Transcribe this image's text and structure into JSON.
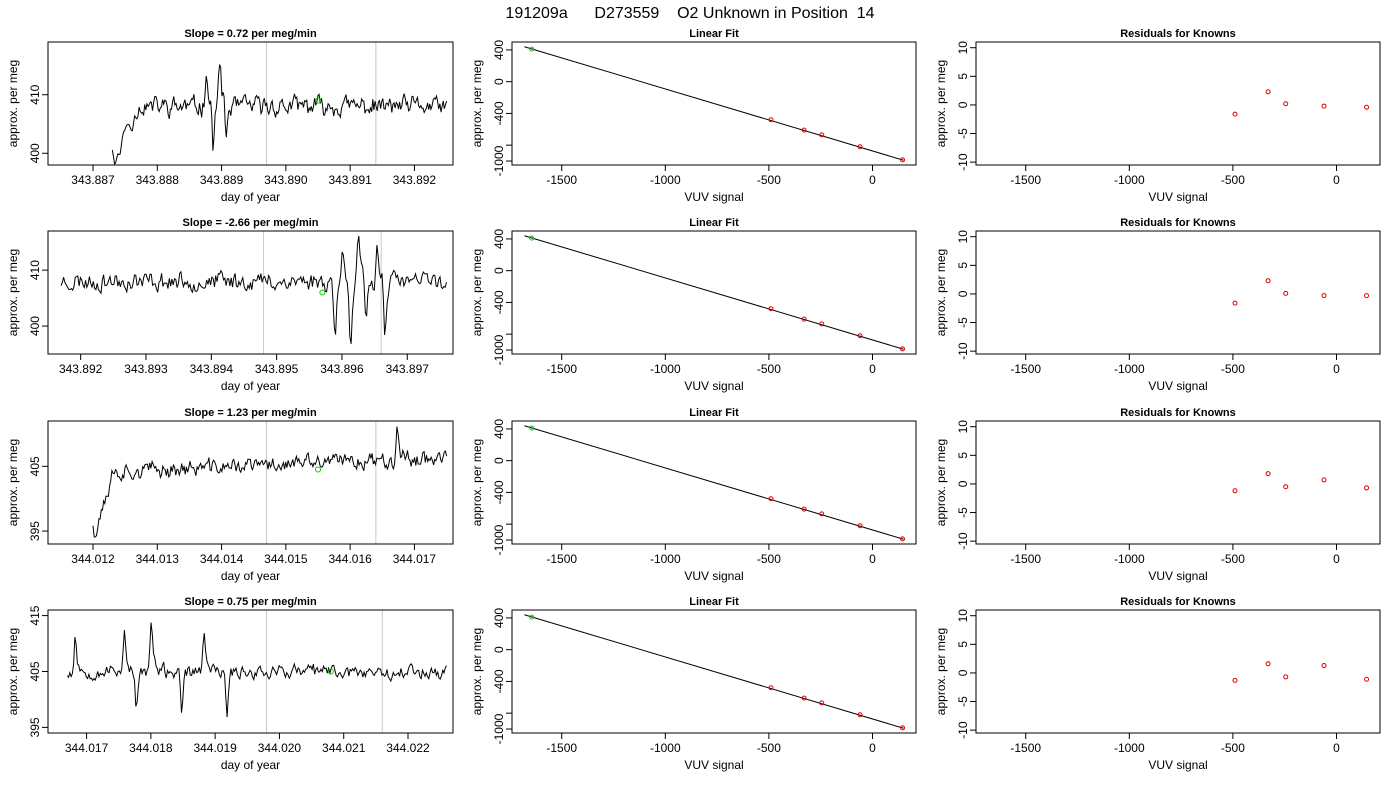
{
  "figure": {
    "title": "191209a      D273559    O2 Unknown in Position  14"
  },
  "chart_data": [
    {
      "type": "line",
      "panel": "time-series",
      "row": 1,
      "title": "Slope =  0.72  per meg/min",
      "xlabel": "day of year",
      "ylabel": "approx. per meg",
      "xlim": [
        343.8863,
        343.8926
      ],
      "ylim": [
        398,
        419
      ],
      "xticks": [
        "343.887",
        "343.888",
        "343.889",
        "343.890",
        "343.891",
        "343.892"
      ],
      "yticks": [
        "400",
        "410"
      ],
      "vlines": [
        343.8897,
        343.8914
      ],
      "marker": {
        "x": 343.8905,
        "y": 409,
        "color": "#00cc00"
      },
      "series": {
        "start": 343.8873,
        "end": 343.8925,
        "base": 408,
        "noise": 2.5,
        "ramp_start": 395,
        "ramp_len": 20,
        "spikes": [
          {
            "at": 0.28,
            "amp": 12
          },
          {
            "at": 0.3,
            "amp": -10
          },
          {
            "at": 0.32,
            "amp": 12
          },
          {
            "at": 0.34,
            "amp": -8
          }
        ],
        "seed": 11
      }
    },
    {
      "type": "scatter",
      "panel": "linear-fit",
      "row": 1,
      "title": "Linear Fit",
      "xlabel": "VUV signal",
      "ylabel": "approx. per meg",
      "xlim": [
        -1740,
        210
      ],
      "ylim": [
        -1050,
        500
      ],
      "xticks": [
        -1500,
        -1000,
        -500,
        0
      ],
      "yticks": [
        400,
        0,
        -400,
        -1000
      ],
      "yticks_minor": [
        -800
      ],
      "line": [
        [
          -1680,
          440
        ],
        [
          150,
          -990
        ]
      ],
      "unknown": [
        {
          "x": -1645,
          "y": 410
        }
      ],
      "knowns": [
        {
          "x": -490,
          "y": -480
        },
        {
          "x": -330,
          "y": -610
        },
        {
          "x": -245,
          "y": -670
        },
        {
          "x": -60,
          "y": -820
        },
        {
          "x": 145,
          "y": -985
        }
      ]
    },
    {
      "type": "scatter",
      "panel": "residuals",
      "row": 1,
      "title": "Residuals for Knowns",
      "xlabel": "VUV signal",
      "ylabel": "approx. per meg",
      "xlim": [
        -1740,
        210
      ],
      "ylim": [
        -10.5,
        11
      ],
      "xticks": [
        -1500,
        -1000,
        -500,
        0
      ],
      "yticks": [
        10,
        5,
        0,
        -5,
        -10
      ],
      "knowns": [
        {
          "x": -490,
          "y": -1.6
        },
        {
          "x": -330,
          "y": 2.3
        },
        {
          "x": -245,
          "y": 0.2
        },
        {
          "x": -60,
          "y": -0.2
        },
        {
          "x": 145,
          "y": -0.4
        }
      ]
    },
    {
      "type": "line",
      "panel": "time-series",
      "row": 2,
      "title": "Slope =  -2.66  per meg/min",
      "xlabel": "day of year",
      "ylabel": "approx. per meg",
      "xlim": [
        343.8915,
        343.8977
      ],
      "ylim": [
        395,
        417
      ],
      "xticks": [
        "343.892",
        "343.893",
        "343.894",
        "343.895",
        "343.896",
        "343.897"
      ],
      "yticks": [
        "400",
        "410"
      ],
      "vlines": [
        343.8948,
        343.8966
      ],
      "marker": {
        "x": 343.8957,
        "y": 406,
        "color": "#00cc00"
      },
      "series": {
        "start": 343.8917,
        "end": 343.8976,
        "base": 408,
        "noise": 2.5,
        "ramp_start": null,
        "ramp_len": 0,
        "spikes": [
          {
            "at": 0.71,
            "amp": -14
          },
          {
            "at": 0.73,
            "amp": 14
          },
          {
            "at": 0.75,
            "amp": -14
          },
          {
            "at": 0.77,
            "amp": 12
          },
          {
            "at": 0.79,
            "amp": -10
          },
          {
            "at": 0.82,
            "amp": 11
          },
          {
            "at": 0.84,
            "amp": -12
          }
        ],
        "seed": 23
      }
    },
    {
      "type": "scatter",
      "panel": "linear-fit",
      "row": 2,
      "title": "Linear Fit",
      "xlabel": "VUV signal",
      "ylabel": "approx. per meg",
      "xlim": [
        -1740,
        210
      ],
      "ylim": [
        -1050,
        500
      ],
      "xticks": [
        -1500,
        -1000,
        -500,
        0
      ],
      "yticks": [
        400,
        0,
        -400,
        -1000
      ],
      "yticks_minor": [
        -800
      ],
      "line": [
        [
          -1680,
          440
        ],
        [
          150,
          -990
        ]
      ],
      "unknown": [
        {
          "x": -1645,
          "y": 410
        }
      ],
      "knowns": [
        {
          "x": -490,
          "y": -480
        },
        {
          "x": -330,
          "y": -610
        },
        {
          "x": -245,
          "y": -670
        },
        {
          "x": -60,
          "y": -820
        },
        {
          "x": 145,
          "y": -985
        }
      ]
    },
    {
      "type": "scatter",
      "panel": "residuals",
      "row": 2,
      "title": "Residuals for Knowns",
      "xlabel": "VUV signal",
      "ylabel": "approx. per meg",
      "xlim": [
        -1740,
        210
      ],
      "ylim": [
        -10.5,
        11
      ],
      "xticks": [
        -1500,
        -1000,
        -500,
        0
      ],
      "yticks": [
        10,
        5,
        0,
        -5,
        -10
      ],
      "knowns": [
        {
          "x": -490,
          "y": -1.6
        },
        {
          "x": -330,
          "y": 2.3
        },
        {
          "x": -245,
          "y": 0.1
        },
        {
          "x": -60,
          "y": -0.3
        },
        {
          "x": 145,
          "y": -0.3
        }
      ]
    },
    {
      "type": "line",
      "panel": "time-series",
      "row": 3,
      "title": "Slope =  1.23  per meg/min",
      "xlabel": "day of year",
      "ylabel": "approx. per meg",
      "xlim": [
        344.0113,
        344.0176
      ],
      "ylim": [
        393,
        412
      ],
      "xticks": [
        "344.012",
        "344.013",
        "344.014",
        "344.015",
        "344.016",
        "344.017"
      ],
      "yticks": [
        "395",
        "405"
      ],
      "vlines": [
        344.0147,
        344.0164
      ],
      "marker": {
        "x": 344.0155,
        "y": 404.5,
        "color": "#00cc00"
      },
      "series": {
        "start": 344.012,
        "end": 344.0175,
        "base": 404,
        "noise": 1.8,
        "ramp_start": 390,
        "ramp_len": 14,
        "trend": 2.5,
        "spikes": [
          {
            "at": 0.86,
            "amp": 9
          }
        ],
        "seed": 37
      }
    },
    {
      "type": "scatter",
      "panel": "linear-fit",
      "row": 3,
      "title": "Linear Fit",
      "xlabel": "VUV signal",
      "ylabel": "approx. per meg",
      "xlim": [
        -1740,
        210
      ],
      "ylim": [
        -1050,
        500
      ],
      "xticks": [
        -1500,
        -1000,
        -500,
        0
      ],
      "yticks": [
        400,
        0,
        -400,
        -1000
      ],
      "yticks_minor": [
        -800
      ],
      "line": [
        [
          -1680,
          440
        ],
        [
          150,
          -990
        ]
      ],
      "unknown": [
        {
          "x": -1645,
          "y": 410
        }
      ],
      "knowns": [
        {
          "x": -490,
          "y": -480
        },
        {
          "x": -330,
          "y": -610
        },
        {
          "x": -245,
          "y": -670
        },
        {
          "x": -60,
          "y": -820
        },
        {
          "x": 145,
          "y": -985
        }
      ]
    },
    {
      "type": "scatter",
      "panel": "residuals",
      "row": 3,
      "title": "Residuals for Knowns",
      "xlabel": "VUV signal",
      "ylabel": "approx. per meg",
      "xlim": [
        -1740,
        210
      ],
      "ylim": [
        -10.5,
        11
      ],
      "xticks": [
        -1500,
        -1000,
        -500,
        0
      ],
      "yticks": [
        10,
        5,
        0,
        -5,
        -10
      ],
      "knowns": [
        {
          "x": -490,
          "y": -1.2
        },
        {
          "x": -330,
          "y": 1.8
        },
        {
          "x": -245,
          "y": -0.5
        },
        {
          "x": -60,
          "y": 0.7
        },
        {
          "x": 145,
          "y": -0.7
        }
      ]
    },
    {
      "type": "line",
      "panel": "time-series",
      "row": 4,
      "title": "Slope =  0.75  per meg/min",
      "xlabel": "day of year",
      "ylabel": "approx. per meg",
      "xlim": [
        344.0164,
        344.0227
      ],
      "ylim": [
        394,
        416
      ],
      "xticks": [
        "344.017",
        "344.018",
        "344.019",
        "344.020",
        "344.021",
        "344.022"
      ],
      "yticks": [
        "395",
        "405",
        "415"
      ],
      "vlines": [
        344.0198,
        344.0216
      ],
      "marker": {
        "x": 344.0208,
        "y": 405,
        "color": "#00cc00"
      },
      "series": {
        "start": 344.0167,
        "end": 344.0226,
        "base": 405,
        "noise": 1.8,
        "ramp_start": null,
        "ramp_len": 0,
        "spikes": [
          {
            "at": 0.02,
            "amp": 10
          },
          {
            "at": 0.15,
            "amp": 12
          },
          {
            "at": 0.18,
            "amp": -9
          },
          {
            "at": 0.22,
            "amp": 12
          },
          {
            "at": 0.3,
            "amp": -10
          },
          {
            "at": 0.36,
            "amp": 11
          },
          {
            "at": 0.42,
            "amp": -11
          }
        ],
        "seed": 53
      }
    },
    {
      "type": "scatter",
      "panel": "linear-fit",
      "row": 4,
      "title": "Linear Fit",
      "xlabel": "VUV signal",
      "ylabel": "approx. per meg",
      "xlim": [
        -1740,
        210
      ],
      "ylim": [
        -1050,
        500
      ],
      "xticks": [
        -1500,
        -1000,
        -500,
        0
      ],
      "yticks": [
        400,
        0,
        -400,
        -1000
      ],
      "yticks_minor": [
        -800
      ],
      "line": [
        [
          -1680,
          440
        ],
        [
          150,
          -990
        ]
      ],
      "unknown": [
        {
          "x": -1645,
          "y": 410
        }
      ],
      "knowns": [
        {
          "x": -490,
          "y": -480
        },
        {
          "x": -330,
          "y": -610
        },
        {
          "x": -245,
          "y": -670
        },
        {
          "x": -60,
          "y": -820
        },
        {
          "x": 145,
          "y": -985
        }
      ]
    },
    {
      "type": "scatter",
      "panel": "residuals",
      "row": 4,
      "title": "Residuals for Knowns",
      "xlabel": "VUV signal",
      "ylabel": "approx. per meg",
      "xlim": [
        -1740,
        210
      ],
      "ylim": [
        -10.5,
        11
      ],
      "xticks": [
        -1500,
        -1000,
        -500,
        0
      ],
      "yticks": [
        10,
        5,
        0,
        -5,
        -10
      ],
      "knowns": [
        {
          "x": -490,
          "y": -1.3
        },
        {
          "x": -330,
          "y": 1.6
        },
        {
          "x": -245,
          "y": -0.7
        },
        {
          "x": -60,
          "y": 1.3
        },
        {
          "x": 145,
          "y": -1.1
        }
      ]
    }
  ]
}
